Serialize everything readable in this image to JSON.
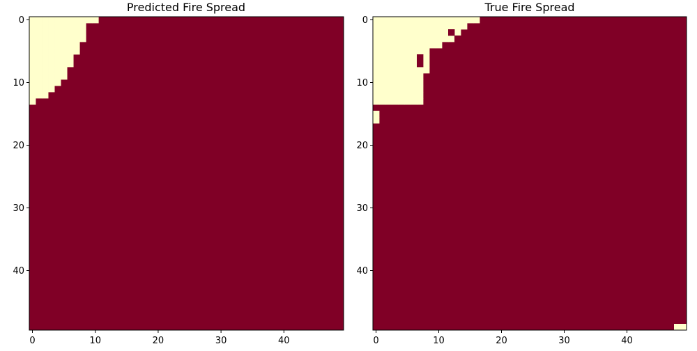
{
  "chart_data": [
    {
      "type": "heatmap",
      "title": "Predicted Fire Spread",
      "grid_size": [
        50,
        50
      ],
      "colors": {
        "burning": "#800026",
        "unburned": "#ffffcc"
      },
      "x_ticks": [
        0,
        10,
        20,
        30,
        40
      ],
      "y_ticks": [
        0,
        10,
        20,
        30,
        40
      ],
      "unburned_prefix_per_row": [
        11,
        9,
        9,
        9,
        8,
        8,
        7,
        7,
        6,
        6,
        5,
        4,
        3,
        1
      ]
    },
    {
      "type": "heatmap",
      "title": "True Fire Spread",
      "grid_size": [
        50,
        50
      ],
      "colors": {
        "burning": "#800026",
        "unburned": "#ffffcc"
      },
      "x_ticks": [
        0,
        10,
        20,
        30,
        40
      ],
      "y_ticks": [
        0,
        10,
        20,
        30,
        40
      ],
      "unburned_prefix_per_row": [
        17,
        15,
        14,
        14,
        11,
        9,
        9,
        9,
        9,
        8,
        8,
        8,
        8,
        8
      ],
      "burning_cells": [
        [
          2,
          12
        ],
        [
          3,
          13
        ],
        [
          6,
          7
        ],
        [
          7,
          7
        ]
      ],
      "unburned_extra_cells": [
        [
          15,
          0
        ],
        [
          16,
          0
        ],
        [
          49,
          48
        ],
        [
          49,
          49
        ]
      ]
    }
  ]
}
